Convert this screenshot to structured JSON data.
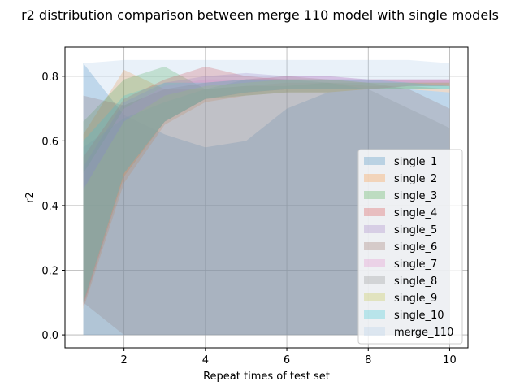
{
  "chart_data": {
    "type": "area",
    "title": "r2 distribution comparison between merge 110 model with single models",
    "xlabel": "Repeat times of test set",
    "ylabel": "r2",
    "xlim": [
      0.55,
      10.45
    ],
    "ylim": [
      -0.04,
      0.89
    ],
    "xticks": [
      2,
      4,
      6,
      8,
      10
    ],
    "yticks": [
      0.0,
      0.2,
      0.4,
      0.6,
      0.8
    ],
    "xtick_labels": [
      "2",
      "4",
      "6",
      "8",
      "10"
    ],
    "ytick_labels": [
      "0.0",
      "0.2",
      "0.4",
      "0.6",
      "0.8"
    ],
    "grid": true,
    "legend_position": "lower-right",
    "x": [
      1,
      2,
      3,
      4,
      5,
      6,
      7,
      8,
      9,
      10
    ],
    "series": [
      {
        "name": "single_1",
        "color": "#1f77b4",
        "upper": [
          0.84,
          0.68,
          0.62,
          0.58,
          0.6,
          0.7,
          0.75,
          0.76,
          0.76,
          0.75
        ],
        "lower": [
          0.0,
          0.0,
          0.0,
          0.0,
          0.0,
          0.0,
          0.0,
          0.0,
          0.0,
          0.0
        ]
      },
      {
        "name": "single_2",
        "color": "#ff7f0e",
        "upper": [
          0.62,
          0.82,
          0.76,
          0.76,
          0.77,
          0.78,
          0.78,
          0.77,
          0.77,
          0.76
        ],
        "lower": [
          0.08,
          0.47,
          0.65,
          0.72,
          0.74,
          0.75,
          0.75,
          0.76,
          0.76,
          0.75
        ]
      },
      {
        "name": "single_3",
        "color": "#2ca02c",
        "upper": [
          0.66,
          0.79,
          0.83,
          0.76,
          0.77,
          0.77,
          0.78,
          0.78,
          0.78,
          0.78
        ],
        "lower": [
          0.1,
          0.5,
          0.66,
          0.73,
          0.74,
          0.75,
          0.75,
          0.76,
          0.76,
          0.76
        ]
      },
      {
        "name": "single_4",
        "color": "#d62728",
        "upper": [
          0.55,
          0.73,
          0.79,
          0.83,
          0.8,
          0.79,
          0.79,
          0.79,
          0.79,
          0.79
        ],
        "lower": [
          0.09,
          0.49,
          0.66,
          0.73,
          0.75,
          0.76,
          0.76,
          0.76,
          0.77,
          0.77
        ]
      },
      {
        "name": "single_5",
        "color": "#9467bd",
        "upper": [
          0.52,
          0.72,
          0.78,
          0.8,
          0.81,
          0.8,
          0.8,
          0.79,
          0.79,
          0.79
        ],
        "lower": [
          0.1,
          0.5,
          0.66,
          0.73,
          0.75,
          0.76,
          0.76,
          0.76,
          0.77,
          0.77
        ]
      },
      {
        "name": "single_6",
        "color": "#8c564b",
        "upper": [
          0.74,
          0.71,
          0.76,
          0.78,
          0.79,
          0.8,
          0.79,
          0.78,
          0.76,
          0.7
        ],
        "lower": [
          0.1,
          0.0,
          0.0,
          0.0,
          0.0,
          0.0,
          0.0,
          0.0,
          0.0,
          0.0
        ]
      },
      {
        "name": "single_7",
        "color": "#e377c2",
        "upper": [
          0.5,
          0.7,
          0.77,
          0.79,
          0.79,
          0.8,
          0.8,
          0.79,
          0.79,
          0.79
        ],
        "lower": [
          0.1,
          0.49,
          0.66,
          0.73,
          0.75,
          0.76,
          0.76,
          0.76,
          0.77,
          0.77
        ]
      },
      {
        "name": "single_8",
        "color": "#7f7f7f",
        "upper": [
          0.58,
          0.67,
          0.72,
          0.76,
          0.79,
          0.79,
          0.78,
          0.76,
          0.7,
          0.64
        ],
        "lower": [
          0.0,
          0.0,
          0.0,
          0.0,
          0.0,
          0.0,
          0.0,
          0.0,
          0.0,
          0.0
        ]
      },
      {
        "name": "single_9",
        "color": "#bcbd22",
        "upper": [
          0.45,
          0.66,
          0.74,
          0.77,
          0.78,
          0.79,
          0.79,
          0.78,
          0.78,
          0.78
        ],
        "lower": [
          0.1,
          0.49,
          0.66,
          0.73,
          0.75,
          0.76,
          0.76,
          0.76,
          0.77,
          0.77
        ]
      },
      {
        "name": "single_10",
        "color": "#17becf",
        "upper": [
          0.6,
          0.74,
          0.78,
          0.78,
          0.79,
          0.79,
          0.79,
          0.79,
          0.78,
          0.77
        ],
        "lower": [
          0.1,
          0.5,
          0.66,
          0.73,
          0.75,
          0.76,
          0.76,
          0.76,
          0.76,
          0.76
        ]
      },
      {
        "name": "merge_110",
        "color": "#a6c8e8",
        "upper": [
          0.84,
          0.85,
          0.85,
          0.85,
          0.85,
          0.85,
          0.85,
          0.85,
          0.85,
          0.84
        ],
        "lower": [
          0.0,
          0.0,
          0.0,
          0.0,
          0.0,
          0.0,
          0.0,
          0.0,
          0.0,
          0.0
        ]
      }
    ]
  }
}
